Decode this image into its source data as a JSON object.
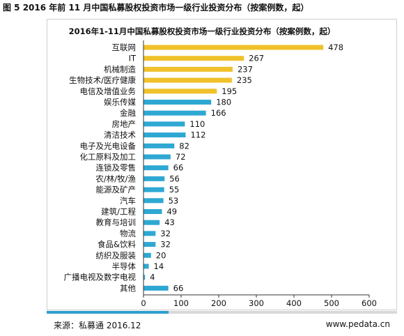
{
  "figure_caption": "图 5 2016 年前 11 月中国私募股权投资市场一级行业投资分布（按案例数，起）",
  "source": "来源：私募通 2016.12",
  "website": "www.pedata.cn",
  "colors": {
    "top5": "#f0c12a",
    "rest": "#2ea8d3",
    "footer_accent": "#2e9fd0"
  },
  "chart_data": {
    "type": "bar",
    "orientation": "horizontal",
    "title": "2016年1-11月中国私募股权投资市场一级行业投资分布（按案例数，起）",
    "xlabel": "",
    "ylabel": "",
    "xlim": [
      0,
      600
    ],
    "xticks": [
      "0",
      "100",
      "200",
      "300",
      "400",
      "500",
      "600"
    ],
    "grid": false,
    "categories": [
      "互联网",
      "IT",
      "机械制造",
      "生物技术/医疗健康",
      "电信及增值业务",
      "娱乐传媒",
      "金融",
      "房地产",
      "清洁技术",
      "电子及光电设备",
      "化工原料及加工",
      "连锁及零售",
      "农/林/牧/渔",
      "能源及矿产",
      "汽车",
      "建筑/工程",
      "教育与培训",
      "物流",
      "食品&饮料",
      "纺织及服装",
      "半导体",
      "广播电视及数字电视",
      "其他"
    ],
    "values": [
      478,
      267,
      237,
      235,
      195,
      180,
      166,
      110,
      112,
      82,
      72,
      66,
      56,
      55,
      53,
      49,
      43,
      32,
      32,
      20,
      14,
      4,
      66
    ],
    "series_colors": [
      "top5",
      "top5",
      "top5",
      "top5",
      "top5",
      "rest",
      "rest",
      "rest",
      "rest",
      "rest",
      "rest",
      "rest",
      "rest",
      "rest",
      "rest",
      "rest",
      "rest",
      "rest",
      "rest",
      "rest",
      "rest",
      "rest",
      "rest"
    ]
  }
}
